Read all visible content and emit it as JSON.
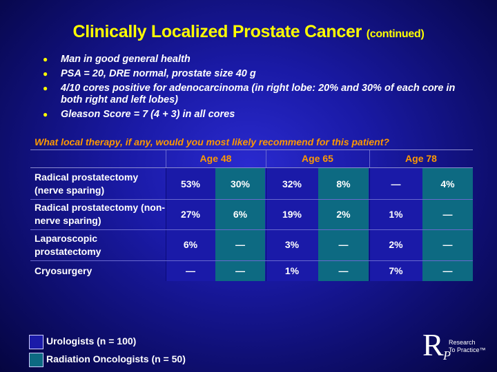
{
  "title": {
    "main": "Clinically Localized Prostate Cancer",
    "suffix": "(continued)"
  },
  "bullets": [
    "Man in good general health",
    "PSA = 20, DRE normal, prostate size 40 g",
    "4/10 cores positive for adenocarcinoma (in right lobe: 20% and 30% of each core in both right and left lobes)",
    "Gleason Score = 7 (4 + 3) in all cores"
  ],
  "question": "What local therapy, if any, would you most likely recommend for this patient?",
  "ages": [
    "Age 48",
    "Age 65",
    "Age 78"
  ],
  "rows": [
    {
      "label": "Radical prostatectomy (nerve sparing)",
      "values": [
        "53%",
        "30%",
        "32%",
        "8%",
        "—",
        "4%"
      ]
    },
    {
      "label": "Radical prostatectomy (non-nerve sparing)",
      "values": [
        "27%",
        "6%",
        "19%",
        "2%",
        "1%",
        "—"
      ]
    },
    {
      "label": "Laparoscopic prostatectomy",
      "values": [
        "6%",
        "—",
        "3%",
        "—",
        "2%",
        "—"
      ]
    },
    {
      "label": "Cryosurgery",
      "values": [
        "—",
        "—",
        "1%",
        "—",
        "7%",
        "—"
      ]
    }
  ],
  "legend": {
    "urologists": "Urologists  (n = 100)",
    "radiation": "Radiation Oncologists  (n = 50)"
  },
  "logo": {
    "letter_r": "R",
    "letter_p": "P",
    "line1": "Research",
    "line2": "To Practice™"
  },
  "colors": {
    "title": "#ffff00",
    "question": "#ff9900",
    "urologists": "#1a1aa8",
    "radiation": "#0d6a82"
  }
}
